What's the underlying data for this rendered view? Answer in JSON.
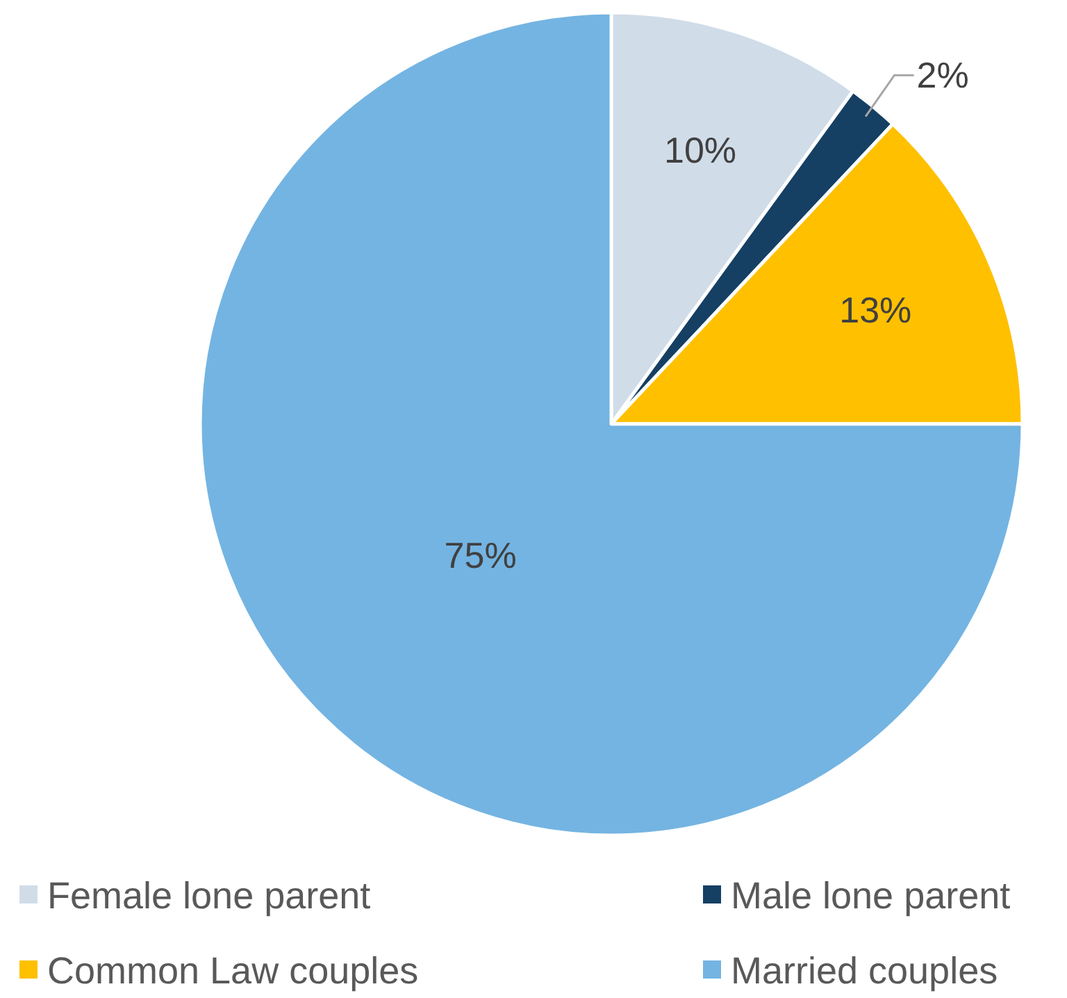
{
  "chart_data": {
    "type": "pie",
    "categories": [
      "Female lone parent",
      "Male lone parent",
      "Common Law couples",
      "Married couples"
    ],
    "values": [
      10,
      2,
      13,
      75
    ],
    "colors": [
      "#d0dce8",
      "#153f63",
      "#ffc000",
      "#74b4e2"
    ],
    "value_labels": [
      "10%",
      "2%",
      "13%",
      "75%"
    ],
    "legend": "bottom"
  }
}
